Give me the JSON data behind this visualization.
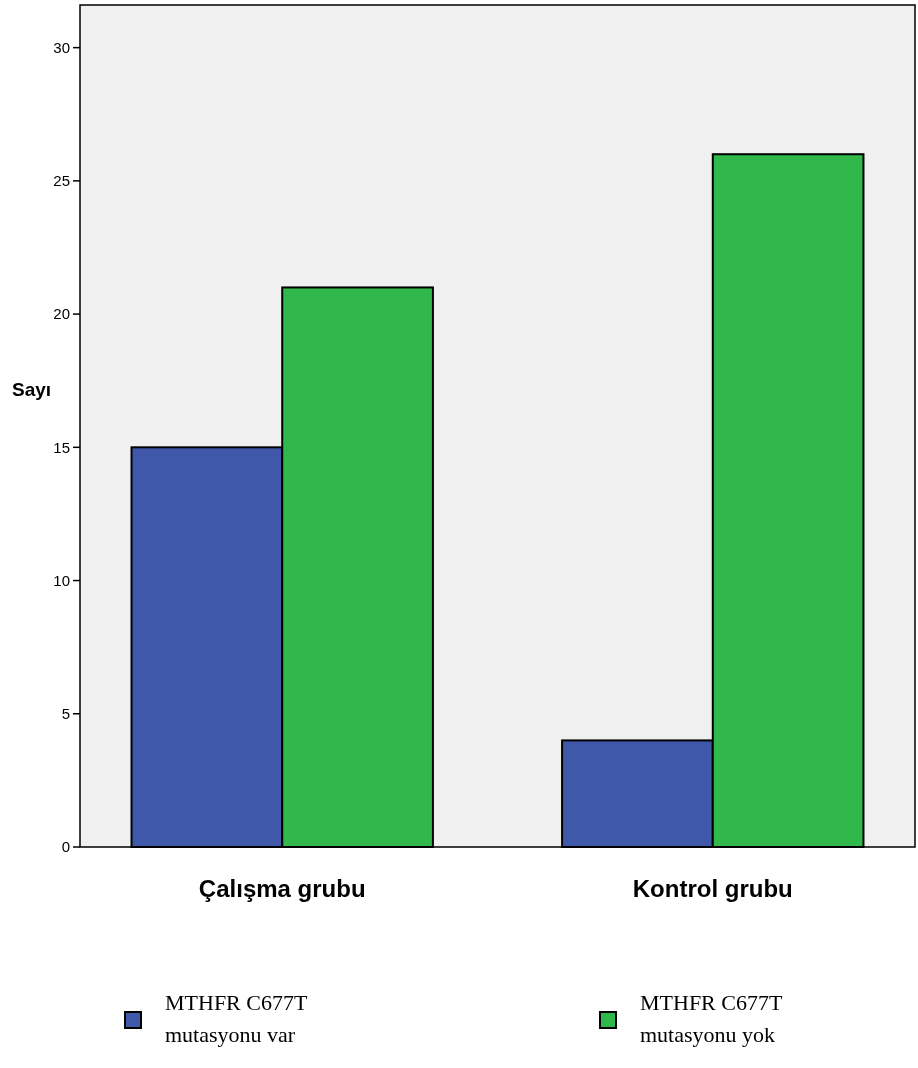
{
  "chart_data": {
    "type": "bar",
    "ylabel": "Sayı",
    "categories": [
      "Çalışma grubu",
      "Kontrol grubu"
    ],
    "series": [
      {
        "name": "MTHFR C677T mutasyonu var",
        "color": "#3f58aa",
        "values": [
          15,
          4
        ]
      },
      {
        "name": "MTHFR C677T mutasyonu yok",
        "color": "#30b84a",
        "values": [
          21,
          26
        ]
      }
    ],
    "ylim": [
      0,
      31.6
    ],
    "yticks": [
      0,
      5,
      10,
      15,
      20,
      25,
      30
    ],
    "grid": false,
    "legend": "bottom"
  }
}
